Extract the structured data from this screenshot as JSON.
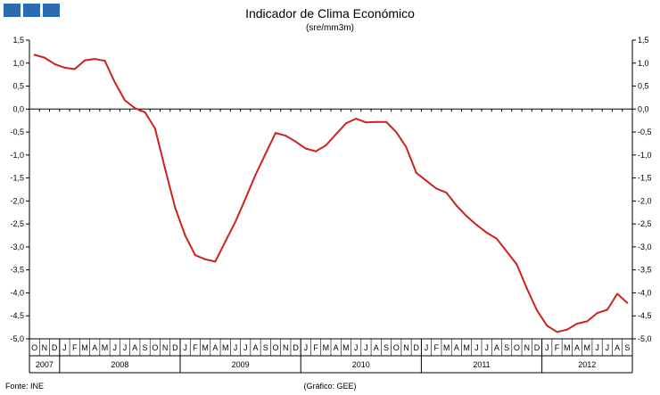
{
  "title": "Indicador de Clima Económico",
  "subtitle": "(sre/mm3m)",
  "source": "Fonte: INE",
  "credit": "(Gráfico: GEE)",
  "colors": {
    "line": "#cc2222",
    "logo": "#2b6cb0",
    "axis": "#000000"
  },
  "chart_data": {
    "type": "line",
    "ylim": [
      -5.0,
      1.5
    ],
    "yticks": [
      "1,5",
      "1,0",
      "0,5",
      "0,0",
      "-0,5",
      "-1,0",
      "-1,5",
      "-2,0",
      "-2,5",
      "-3,0",
      "-3,5",
      "-4,0",
      "-4,5",
      "-5,0"
    ],
    "grid": false,
    "months": [
      "O",
      "N",
      "D",
      "J",
      "F",
      "M",
      "A",
      "M",
      "J",
      "J",
      "A",
      "S",
      "O",
      "N",
      "D",
      "J",
      "F",
      "M",
      "A",
      "M",
      "J",
      "J",
      "A",
      "S",
      "O",
      "N",
      "D",
      "J",
      "F",
      "M",
      "A",
      "M",
      "J",
      "J",
      "A",
      "S",
      "O",
      "N",
      "D",
      "J",
      "F",
      "M",
      "A",
      "M",
      "J",
      "J",
      "A",
      "S",
      "O",
      "N",
      "D",
      "J",
      "F",
      "M",
      "A",
      "M",
      "J",
      "J",
      "A",
      "S"
    ],
    "years": [
      {
        "label": "2007",
        "start": 0,
        "count": 3
      },
      {
        "label": "2008",
        "start": 3,
        "count": 12
      },
      {
        "label": "2009",
        "start": 15,
        "count": 12
      },
      {
        "label": "2010",
        "start": 27,
        "count": 12
      },
      {
        "label": "2011",
        "start": 39,
        "count": 12
      },
      {
        "label": "2012",
        "start": 51,
        "count": 9
      }
    ],
    "values": [
      1.18,
      1.12,
      0.98,
      0.9,
      0.87,
      1.06,
      1.09,
      1.05,
      0.58,
      0.19,
      0.02,
      -0.07,
      -0.42,
      -1.3,
      -2.15,
      -2.75,
      -3.18,
      -3.27,
      -3.32,
      -2.88,
      -2.45,
      -1.95,
      -1.43,
      -0.97,
      -0.52,
      -0.58,
      -0.71,
      -0.86,
      -0.92,
      -0.79,
      -0.55,
      -0.31,
      -0.21,
      -0.29,
      -0.28,
      -0.28,
      -0.5,
      -0.83,
      -1.39,
      -1.56,
      -1.73,
      -1.82,
      -2.1,
      -2.33,
      -2.52,
      -2.69,
      -2.82,
      -3.1,
      -3.38,
      -3.9,
      -4.38,
      -4.71,
      -4.85,
      -4.8,
      -4.67,
      -4.62,
      -4.44,
      -4.37,
      -4.02,
      -4.22
    ]
  }
}
